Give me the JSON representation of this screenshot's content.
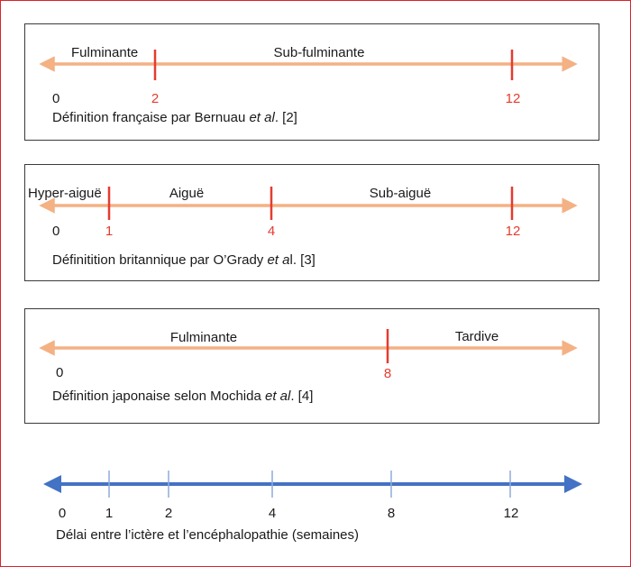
{
  "colors": {
    "frame": "#d9232e",
    "panel_border": "#3a3a3a",
    "orange_axis": "#f4b183",
    "red_tick": "#e53b2f",
    "blue_axis": "#4472c4",
    "blue_tick": "#8faadc"
  },
  "panels": [
    {
      "id": "french",
      "origin_label": "0",
      "zones": [
        "Fulminante",
        "Sub-fulminante"
      ],
      "ticks": [
        {
          "value": 2,
          "label": "2"
        },
        {
          "value": 12,
          "label": "12"
        }
      ],
      "caption_pre": "Définition française par Bernuau ",
      "caption_italic": "et al",
      "caption_post": ". [2]"
    },
    {
      "id": "british",
      "origin_label": "0",
      "zones": [
        "Hyper-aiguë",
        "Aiguë",
        "Sub-aiguë"
      ],
      "ticks": [
        {
          "value": 1,
          "label": "1"
        },
        {
          "value": 4,
          "label": "4"
        },
        {
          "value": 12,
          "label": "12"
        }
      ],
      "caption_pre": "Définitition britannique par O’Grady ",
      "caption_italic": "et a",
      "caption_post": "l. [3]"
    },
    {
      "id": "japanese",
      "origin_label": "0",
      "zones": [
        "Fulminante",
        "Tardive"
      ],
      "ticks": [
        {
          "value": 8,
          "label": "8"
        }
      ],
      "caption_pre": "Définition japonaise selon Mochida ",
      "caption_italic": "et al",
      "caption_post": ". [4]"
    }
  ],
  "scale": {
    "tick_labels": [
      "0",
      "1",
      "2",
      "4",
      "8",
      "12"
    ],
    "ticks": [
      1,
      2,
      4,
      8,
      12
    ],
    "caption": "Délai entre l’ictère et l’encéphalopathie (semaines)"
  }
}
